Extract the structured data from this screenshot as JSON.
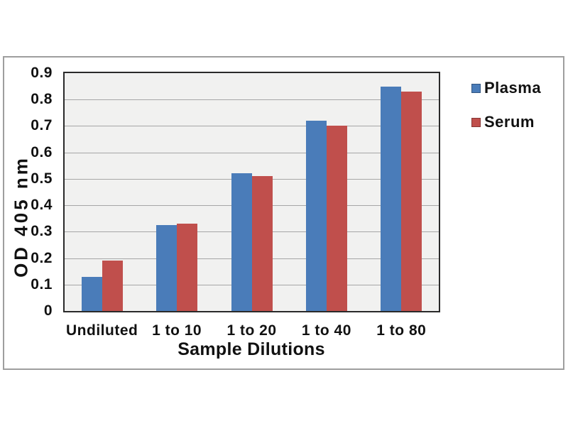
{
  "chart_data": {
    "type": "bar",
    "title": "",
    "categories": [
      "Undiluted",
      "1 to 10",
      "1 to 20",
      "1 to 40",
      "1 to 80"
    ],
    "series": [
      {
        "name": "Plasma",
        "color": "#4a7cb9",
        "values": [
          0.13,
          0.325,
          0.52,
          0.72,
          0.85
        ]
      },
      {
        "name": "Serum",
        "color": "#c04f4c",
        "values": [
          0.19,
          0.33,
          0.51,
          0.7,
          0.83
        ]
      }
    ],
    "xlabel": "Sample Dilutions",
    "ylabel": "OD 405 nm",
    "ylim": [
      0,
      0.9
    ],
    "ytick_step": 0.1,
    "yticks": [
      "0",
      "0.1",
      "0.2",
      "0.3",
      "0.4",
      "0.5",
      "0.6",
      "0.7",
      "0.8",
      "0.9"
    ],
    "grid": true,
    "legend_position": "right",
    "colors": {
      "plot_background": "#f1f1f0",
      "gridline": "#a6a6a6",
      "plot_border": "#2a2a2a",
      "frame_border": "#9e9e9e",
      "text": "#111111"
    }
  }
}
